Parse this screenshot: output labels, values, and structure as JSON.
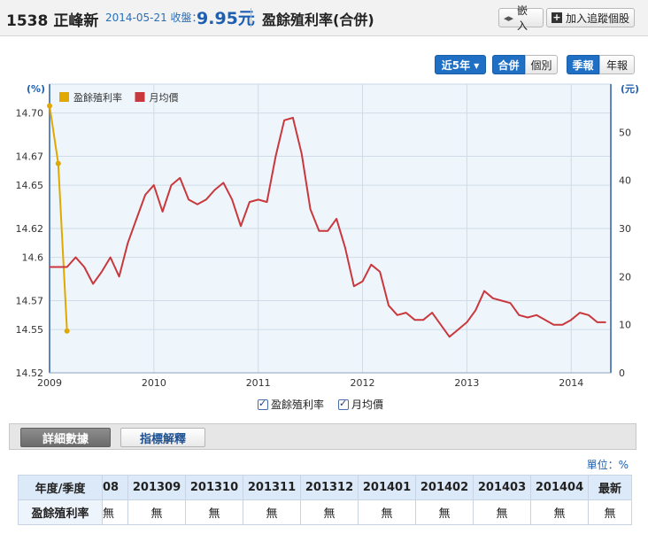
{
  "header": {
    "stock_code": "1538",
    "stock_name": "正峰新",
    "date_label": "2014-05-21 收盤：",
    "price": "9.95元",
    "page_title": "盈餘殖利率(合併)",
    "embed_label": "嵌入",
    "embed_icon": "arrows-icon",
    "track_label": "加入追蹤個股",
    "track_icon": "plus-icon"
  },
  "toolbar": {
    "range_label": "近5年 ▾",
    "consolidated_label": "合併",
    "individual_label": "個別",
    "quarterly_label": "季報",
    "annual_label": "年報"
  },
  "chart_data": {
    "type": "line",
    "left_axis_unit": "(%)",
    "right_axis_unit": "(元)",
    "left_ylim": [
      14.52,
      14.72
    ],
    "left_ticks": [
      "14.52",
      "14.55",
      "14.57",
      "14.6",
      "14.62",
      "14.65",
      "14.67",
      "14.70"
    ],
    "right_ylim": [
      0,
      60
    ],
    "right_ticks": [
      "0",
      "10",
      "20",
      "30",
      "40",
      "50"
    ],
    "x_range": [
      2009.0,
      2014.38
    ],
    "x_ticks": [
      "2009",
      "2010",
      "2011",
      "2012",
      "2013",
      "2014"
    ],
    "grid": true,
    "legend_position": "top-left",
    "series": [
      {
        "name": "盈餘殖利率",
        "axis": "left",
        "color": "#e0a800",
        "x": [
          2009.0,
          2009.083,
          2009.167
        ],
        "y": [
          14.705,
          14.665,
          14.549
        ]
      },
      {
        "name": "月均價",
        "axis": "right",
        "color": "#c8383d",
        "x": [
          2009.0,
          2009.083,
          2009.167,
          2009.25,
          2009.333,
          2009.417,
          2009.5,
          2009.583,
          2009.667,
          2009.75,
          2009.833,
          2009.917,
          2010.0,
          2010.083,
          2010.167,
          2010.25,
          2010.333,
          2010.417,
          2010.5,
          2010.583,
          2010.667,
          2010.75,
          2010.833,
          2010.917,
          2011.0,
          2011.083,
          2011.167,
          2011.25,
          2011.333,
          2011.417,
          2011.5,
          2011.583,
          2011.667,
          2011.75,
          2011.833,
          2011.917,
          2012.0,
          2012.083,
          2012.167,
          2012.25,
          2012.333,
          2012.417,
          2012.5,
          2012.583,
          2012.667,
          2012.75,
          2012.833,
          2012.917,
          2013.0,
          2013.083,
          2013.167,
          2013.25,
          2013.333,
          2013.417,
          2013.5,
          2013.583,
          2013.667,
          2013.75,
          2013.833,
          2013.917,
          2014.0,
          2014.083,
          2014.167,
          2014.25,
          2014.333
        ],
        "y": [
          22,
          22,
          22,
          24,
          22,
          18.5,
          21,
          24,
          20,
          27,
          32,
          37,
          39,
          33.5,
          39,
          40.5,
          36,
          35,
          36,
          38,
          39.5,
          36,
          30.5,
          35.5,
          36,
          35.5,
          45,
          52.5,
          53,
          45.5,
          34,
          29.5,
          29.5,
          32,
          26,
          18,
          19,
          22.5,
          21,
          14,
          12,
          12.5,
          11,
          11,
          12.5,
          10,
          7.5,
          9,
          10.5,
          13,
          17,
          15.5,
          15,
          14.5,
          12,
          11.5,
          12,
          11,
          10,
          10,
          11,
          12.5,
          12,
          10.5,
          10.5
        ]
      }
    ]
  },
  "legend_toggles": {
    "yield_label": "盈餘殖利率",
    "price_label": "月均價"
  },
  "tabs": {
    "detail_label": "詳細數據",
    "explain_label": "指標解釋"
  },
  "unit_label": "單位：%",
  "table": {
    "header_row_label": "年度/季度",
    "cut_column": "08",
    "columns": [
      "201309",
      "201310",
      "201311",
      "201312",
      "201401",
      "201402",
      "201403",
      "201404"
    ],
    "latest_label": "最新",
    "row_label": "盈餘殖利率",
    "cut_value": "無",
    "values": [
      "無",
      "無",
      "無",
      "無",
      "無",
      "無",
      "無",
      "無"
    ],
    "latest_value": "無"
  }
}
